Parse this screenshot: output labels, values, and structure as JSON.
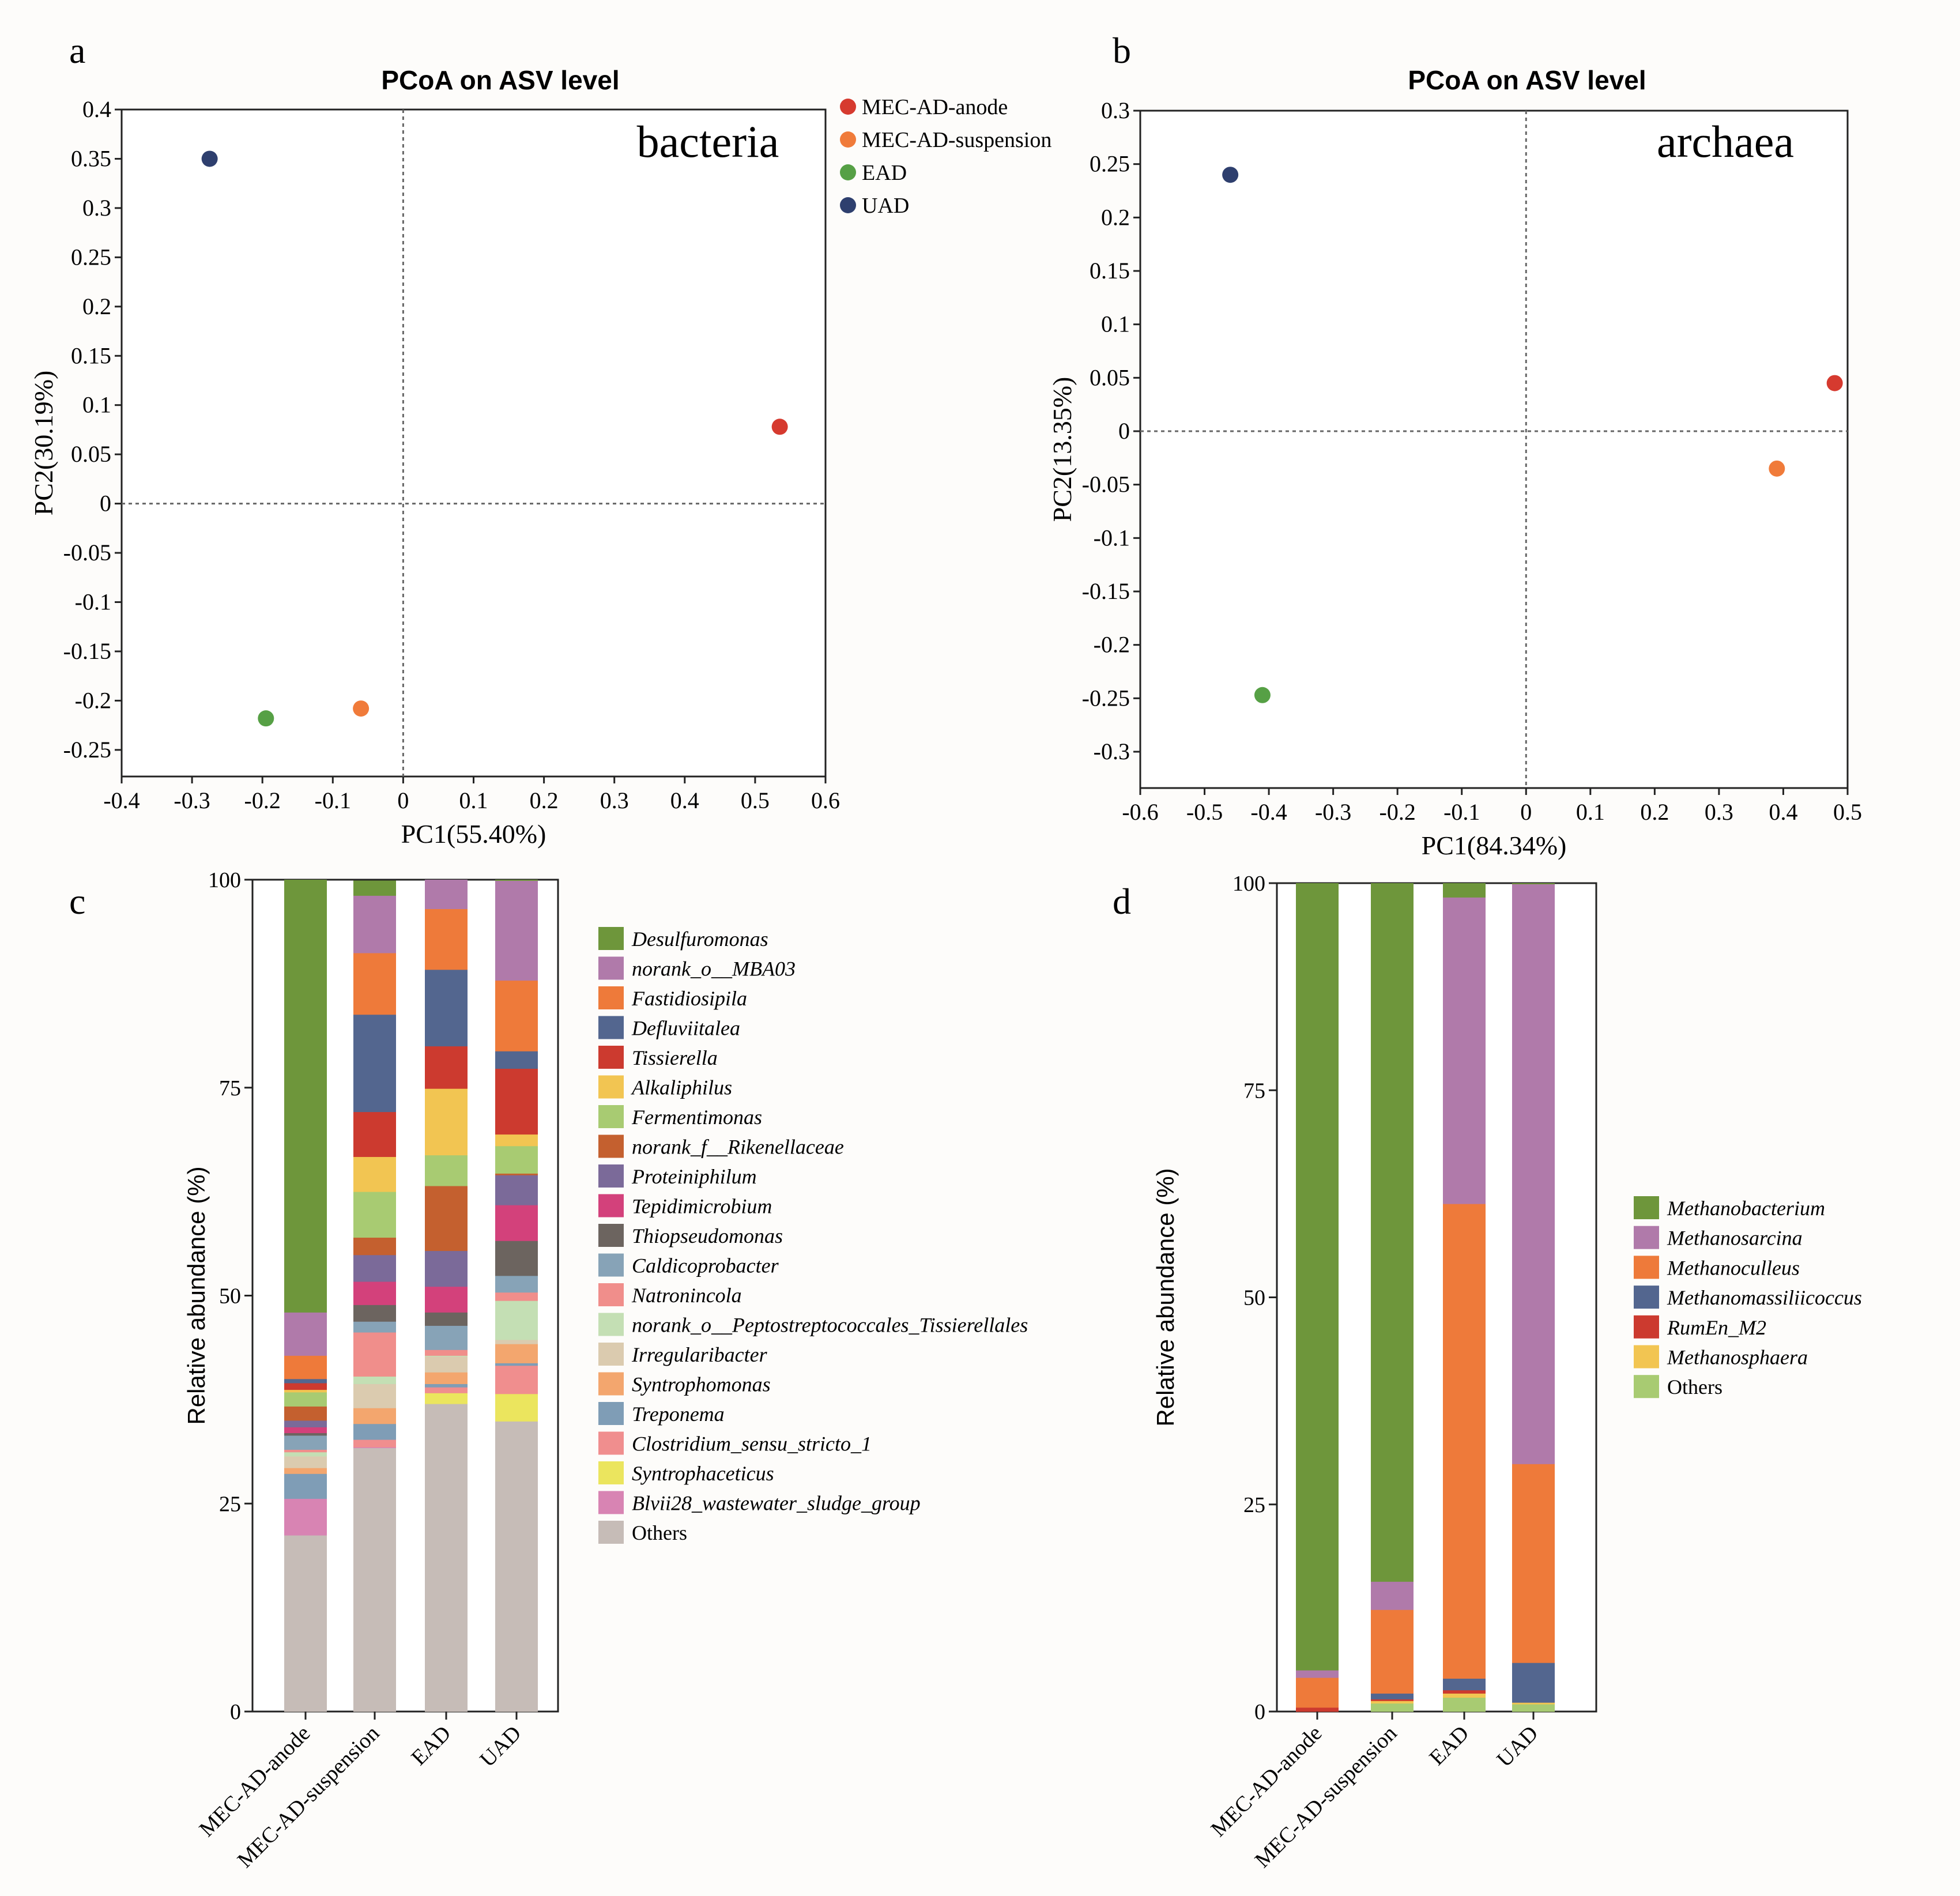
{
  "panel_labels": [
    "a",
    "b",
    "c",
    "d"
  ],
  "chart_data": [
    {
      "type": "scatter",
      "title": "PCoA on ASV level",
      "annotation": "bacteria",
      "xlabel": "PC1(55.40%)",
      "ylabel": "PC2(30.19%)",
      "xlim": [
        -0.4,
        0.6
      ],
      "ylim": [
        -0.277,
        0.4
      ],
      "xticks": [
        "-0.4",
        "-0.3",
        "-0.2",
        "-0.1",
        "0",
        "0.1",
        "0.2",
        "0.3",
        "0.4",
        "0.5",
        "0.6"
      ],
      "yticks": [
        "0.4",
        "0.35",
        "0.3",
        "0.25",
        "0.2",
        "0.15",
        "0.1",
        "0.05",
        "0",
        "-0.05",
        "-0.1",
        "-0.15",
        "-0.2",
        "-0.25"
      ],
      "legend_position": "right-outside-top",
      "points": [
        {
          "name": "MEC-AD-anode",
          "x": 0.535,
          "y": 0.078,
          "color": "#d63a2f"
        },
        {
          "name": "MEC-AD-suspension",
          "x": -0.06,
          "y": -0.208,
          "color": "#f07b3a"
        },
        {
          "name": "EAD",
          "x": -0.195,
          "y": -0.218,
          "color": "#56a045"
        },
        {
          "name": "UAD",
          "x": -0.275,
          "y": 0.35,
          "color": "#2e3f6e"
        }
      ]
    },
    {
      "type": "scatter",
      "title": "PCoA on ASV level",
      "annotation": "archaea",
      "xlabel": "PC1(84.34%)",
      "ylabel": "PC2(13.35%)",
      "xlim": [
        -0.6,
        0.5
      ],
      "ylim": [
        -0.334,
        0.3
      ],
      "xticks": [
        "-0.6",
        "-0.5",
        "-0.4",
        "-0.3",
        "-0.2",
        "-0.1",
        "0",
        "0.1",
        "0.2",
        "0.3",
        "0.4",
        "0.5"
      ],
      "yticks": [
        "0.3",
        "0.25",
        "0.2",
        "0.15",
        "0.1",
        "0.05",
        "0",
        "-0.05",
        "-0.1",
        "-0.15",
        "-0.2",
        "-0.25",
        "-0.3"
      ],
      "points": [
        {
          "name": "MEC-AD-anode",
          "x": 0.48,
          "y": 0.045,
          "color": "#d63a2f"
        },
        {
          "name": "MEC-AD-suspension",
          "x": 0.39,
          "y": -0.035,
          "color": "#f07b3a"
        },
        {
          "name": "EAD",
          "x": -0.41,
          "y": -0.247,
          "color": "#56a045"
        },
        {
          "name": "UAD",
          "x": -0.46,
          "y": 0.24,
          "color": "#2e3f6e"
        }
      ]
    },
    {
      "type": "bar",
      "stacked": true,
      "xlabel": "",
      "ylabel": "Relative abundance (%)",
      "ylim": [
        0,
        100
      ],
      "yticks": [
        "0",
        "25",
        "50",
        "75",
        "100"
      ],
      "categories": [
        "MEC-AD-anode",
        "MEC-AD-suspension",
        "EAD",
        "UAD"
      ],
      "series": [
        {
          "name": "Desulfuromonas",
          "color": "#6e963b",
          "values": [
            52.0,
            1.8,
            0,
            0.1
          ]
        },
        {
          "name": "norank_o__MBA03",
          "color": "#b07aaa",
          "values": [
            5.2,
            6.9,
            3.5,
            12.0
          ]
        },
        {
          "name": "Fastidiosipila",
          "color": "#ee7a3a",
          "values": [
            2.8,
            7.4,
            7.3,
            8.5
          ]
        },
        {
          "name": "Defluviitalea",
          "color": "#53668f",
          "values": [
            0.5,
            11.7,
            9.2,
            2.1
          ]
        },
        {
          "name": "Tissierella",
          "color": "#cc3a2f",
          "values": [
            0.8,
            5.4,
            5.1,
            7.9
          ]
        },
        {
          "name": "Alkaliphilus",
          "color": "#f2c552",
          "values": [
            0.3,
            4.2,
            8.0,
            1.4
          ]
        },
        {
          "name": "Fermentimonas",
          "color": "#a8cb72",
          "values": [
            1.7,
            5.5,
            3.7,
            3.3
          ]
        },
        {
          "name": "norank_f__Rikenellaceae",
          "color": "#c4602f",
          "values": [
            1.7,
            2.1,
            7.8,
            0.2
          ]
        },
        {
          "name": "Proteiniphilum",
          "color": "#7b6a99",
          "values": [
            0.8,
            3.2,
            4.3,
            3.6
          ]
        },
        {
          "name": "Tepidimicrobium",
          "color": "#d3417b",
          "values": [
            0.7,
            2.8,
            3.1,
            4.3
          ]
        },
        {
          "name": "Thiopseudomonas",
          "color": "#6c645f",
          "values": [
            0.3,
            2.0,
            1.6,
            4.2
          ]
        },
        {
          "name": "Caldicoprobacter",
          "color": "#87a3b7",
          "values": [
            1.7,
            1.3,
            2.9,
            2.0
          ]
        },
        {
          "name": "Natronincola",
          "color": "#f08e8b",
          "values": [
            0.3,
            5.3,
            0.7,
            1.0
          ]
        },
        {
          "name": "norank_o__Peptostreptococcales_Tissierellales",
          "color": "#c4dfb4",
          "values": [
            0.5,
            0.9,
            0.1,
            4.7
          ]
        },
        {
          "name": "Irregularibacter",
          "color": "#dbcbaf",
          "values": [
            1.4,
            2.9,
            1.9,
            0.5
          ]
        },
        {
          "name": "Syntrophomonas",
          "color": "#f3a66e",
          "values": [
            0.7,
            1.9,
            1.4,
            2.3
          ]
        },
        {
          "name": "Treponema",
          "color": "#7f9db6",
          "values": [
            3.0,
            1.9,
            0.4,
            0.3
          ]
        },
        {
          "name": "Clostridium_sensu_stricto_1",
          "color": "#f08e8e",
          "values": [
            0,
            0.9,
            0.7,
            3.4
          ]
        },
        {
          "name": "Syntrophaceticus",
          "color": "#ebe55e",
          "values": [
            0,
            0,
            1.3,
            3.3
          ]
        },
        {
          "name": "Blvii28_wastewater_sludge_group",
          "color": "#d884b3",
          "values": [
            4.4,
            0.1,
            0,
            0
          ]
        },
        {
          "name": "Others",
          "color": "#c6bcb7",
          "values": [
            21.2,
            31.7,
            37.0,
            34.9
          ]
        }
      ]
    },
    {
      "type": "bar",
      "stacked": true,
      "xlabel": "",
      "ylabel": "Relative abundance (%)",
      "ylim": [
        0,
        100
      ],
      "yticks": [
        "0",
        "25",
        "50",
        "75",
        "100"
      ],
      "categories": [
        "MEC-AD-anode",
        "MEC-AD-suspension",
        "EAD",
        "UAD"
      ],
      "series": [
        {
          "name": "Methanobacterium",
          "color": "#6e963b",
          "values": [
            95.0,
            84.3,
            1.7,
            0.1
          ]
        },
        {
          "name": "Methanosarcina",
          "color": "#b07aaa",
          "values": [
            0.9,
            3.4,
            37.0,
            70.0
          ]
        },
        {
          "name": "Methanoculleus",
          "color": "#ee7a3a",
          "values": [
            3.6,
            10.1,
            57.3,
            24.0
          ]
        },
        {
          "name": "Methanomassiliicoccus",
          "color": "#53668f",
          "values": [
            0,
            0.7,
            1.4,
            4.8
          ]
        },
        {
          "name": "RumEn_M2",
          "color": "#cc3a2f",
          "values": [
            0.5,
            0.2,
            0.4,
            0
          ]
        },
        {
          "name": "Methanosphaera",
          "color": "#f2c552",
          "values": [
            0,
            0.3,
            0.5,
            0.2
          ]
        },
        {
          "name": "Others",
          "color": "#a8cb72",
          "values": [
            0,
            1.0,
            1.7,
            0.9
          ]
        }
      ]
    }
  ]
}
